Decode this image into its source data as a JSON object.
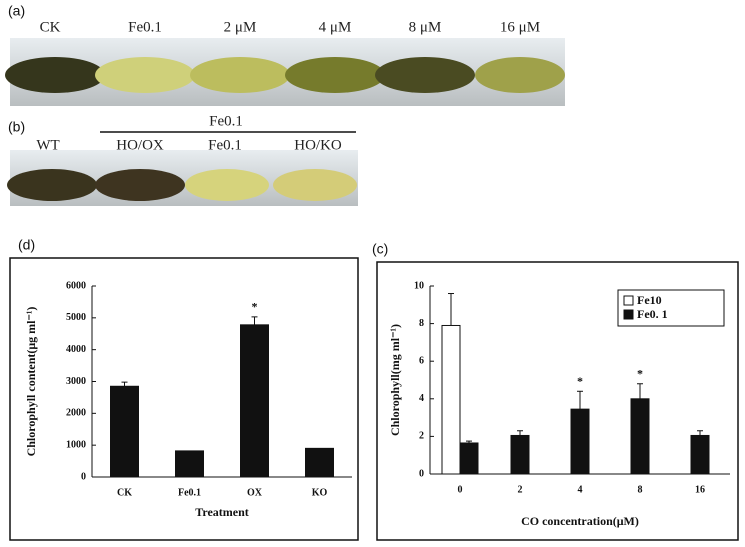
{
  "photos": {
    "a": {
      "panel_label": "(a)",
      "labels": [
        "CK",
        "Fe0.1",
        "2 μM",
        "4 μM",
        "8 μM",
        "16 μM"
      ]
    },
    "b": {
      "panel_label": "(b)",
      "group_label": "Fe0.1",
      "labels": [
        "WT",
        "HO/OX",
        "Fe0.1",
        "HO/KO"
      ]
    }
  },
  "chart_data": [
    {
      "type": "bar",
      "panel_label": "(d)",
      "ylabel": "Chlorophyll content(μg ml⁻¹)",
      "xlabel": "Treatment",
      "categories": [
        "CK",
        "Fe0.1",
        "OX",
        "KO"
      ],
      "values": [
        2850,
        820,
        4780,
        900
      ],
      "errors": [
        130,
        0,
        250,
        0
      ],
      "significance": [
        null,
        null,
        "*",
        null
      ],
      "color": "#111111",
      "ylim": [
        0,
        6000
      ],
      "yticks": [
        0,
        1000,
        2000,
        3000,
        4000,
        5000,
        6000
      ]
    },
    {
      "type": "bar",
      "panel_label": "(c)",
      "ylabel": "Chlorophyll(mg ml⁻¹)",
      "xlabel": "CO concentration(μM)",
      "categories": [
        "0",
        "2",
        "4",
        "8",
        "16"
      ],
      "series": [
        {
          "name": "Fe10",
          "color": "#ffffff",
          "values": [
            7.9,
            null,
            null,
            null,
            null
          ],
          "errors": [
            1.7,
            null,
            null,
            null,
            null
          ],
          "significance": [
            null,
            null,
            null,
            null,
            null
          ]
        },
        {
          "name": "Fe0. 1",
          "color": "#111111",
          "values": [
            1.65,
            2.05,
            3.45,
            4.0,
            2.05
          ],
          "errors": [
            0.1,
            0.25,
            0.95,
            0.8,
            0.25
          ],
          "significance": [
            null,
            null,
            "*",
            "*",
            null
          ]
        }
      ],
      "ylim": [
        0,
        10
      ],
      "yticks": [
        0,
        2,
        4,
        6,
        8,
        10
      ],
      "legend": "top-right"
    }
  ]
}
